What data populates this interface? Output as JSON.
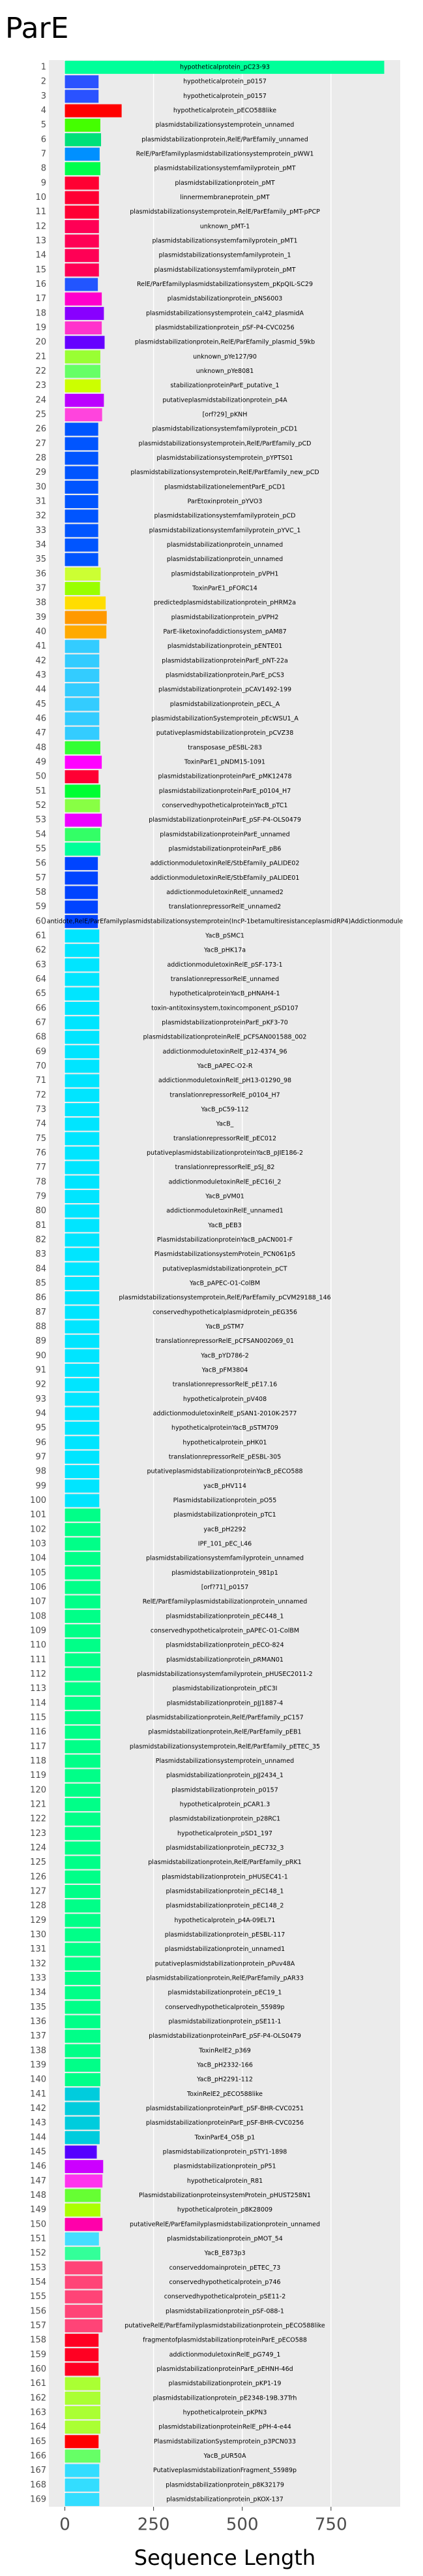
{
  "chart_data": {
    "type": "barh",
    "title": "ParE",
    "xlabel": "Sequence Length",
    "categories": [
      "1",
      "2",
      "3",
      "4",
      "5",
      "6",
      "7",
      "8",
      "9",
      "10",
      "11",
      "12",
      "13",
      "14",
      "15",
      "16",
      "17",
      "18",
      "19",
      "20",
      "21",
      "22",
      "23",
      "24",
      "25",
      "26",
      "27",
      "28",
      "29",
      "30",
      "31",
      "32",
      "33",
      "34",
      "35",
      "36",
      "37",
      "38",
      "39",
      "40",
      "41",
      "42",
      "43",
      "44",
      "45",
      "46",
      "47",
      "48",
      "49",
      "50",
      "51",
      "52",
      "53",
      "54",
      "55",
      "56",
      "57",
      "58",
      "59",
      "60",
      "61",
      "62",
      "63",
      "64",
      "65",
      "66",
      "67",
      "68",
      "69",
      "70",
      "71",
      "72",
      "73",
      "74",
      "75",
      "76",
      "77",
      "78",
      "79",
      "80",
      "81",
      "82",
      "83",
      "84",
      "85",
      "86",
      "87",
      "88",
      "89",
      "90",
      "91",
      "92",
      "93",
      "94",
      "95",
      "96",
      "97",
      "98",
      "99",
      "100",
      "101",
      "102",
      "103",
      "104",
      "105",
      "106",
      "107",
      "108",
      "109",
      "110",
      "111",
      "112",
      "113",
      "114",
      "115",
      "116",
      "117",
      "118",
      "119",
      "120",
      "121",
      "122",
      "123",
      "124",
      "125",
      "126",
      "127",
      "128",
      "129",
      "130",
      "131",
      "132",
      "133",
      "134",
      "135",
      "136",
      "137",
      "138",
      "139",
      "140",
      "141",
      "142",
      "143",
      "144",
      "145",
      "146",
      "147",
      "148",
      "149",
      "150",
      "151",
      "152",
      "153",
      "154",
      "155",
      "156",
      "157",
      "158",
      "159",
      "160",
      "161",
      "162",
      "163",
      "164",
      "165",
      "166",
      "167",
      "168",
      "169"
    ],
    "bar_labels": [
      "hypotheticalprotein_pC23-93",
      "hypotheticalprotein_p0157",
      "hypotheticalprotein_p0157",
      "hypotheticalprotein_pECO588like",
      "plasmidstabilizationsystemprotein_unnamed",
      "plasmidstabilizationprotein,RelE/ParEfamily_unnamed",
      "RelE/ParEfamilyplasmidstabilizationsystemprotein_pWW1",
      "plasmidstabilizationsystemfamilyprotein_pMT",
      "plasmidstabilizationprotein_pMT",
      "linnermembraneprotein_pMT",
      "plasmidstabilizationsystemprotein,RelE/ParEfamily_pMT-pPCP",
      "unknown_pMT-1",
      "plasmidstabilizationsystemfamilyprotein_pMT1",
      "plasmidstabilizationsystemfamilyprotein_1",
      "plasmidstabilizationsystemfamilyprotein_pMT",
      "RelE/ParEfamilyplasmidstabilizationsystem_pKpQIL-SC29",
      "plasmidstabilizationprotein_pNS6003",
      "plasmidstabilizationsystemprotein_cal42_plasmidA",
      "plasmidstabilizationprotein_pSF-P4-CVC0256",
      "plasmidstabilizationprotein,RelE/ParEfamily_plasmid_59kb",
      "unknown_pYe127/90",
      "unknown_pYe8081",
      "stabilizationproteinParE_putative_1",
      "putativeplasmidstabilizationprotein_p4A",
      "[orf?29]_pKNH",
      "plasmidstabilizationsystemfamilyprotein_pCD1",
      "plasmidstabilizationsystemprotein,RelE/ParEfamily_pCD",
      "plasmidstabilizationsystemprotein_pYPTS01",
      "plasmidstabilizationsystemprotein,RelE/ParEfamily_new_pCD",
      "plasmidstabilizationelementParE_pCD1",
      "ParEtoxinprotein_pYVO3",
      "plasmidstabilizationsystemfamilyprotein_pCD",
      "plasmidstabilizationsystemfamilyprotein_pYVC_1",
      "plasmidstabilizationprotein_unnamed",
      "plasmidstabilizationprotein_unnamed",
      "plasmidstabilizationprotein_pVPH1",
      "ToxinParE1_pFORC14",
      "predictedplasmidstabilizationprotein_pHRM2a",
      "plasmidstabilizationprotein_pVPH2",
      "ParE-liketoxinofaddictionsystem_pAM87",
      "plasmidstabilizationprotein_pENTE01",
      "plasmidstabilizationproteinParE_pNT-22a",
      "plasmidstabilizationprotein,ParE_pCS3",
      "plasmidstabilizationprotein_pCAV1492-199",
      "plasmidstabilizationprotein_pECL_A",
      "plasmidstabilizationSystemprotein_pEcWSU1_A",
      "putativeplasmidstabilizationprotein_pCVZ38",
      "transposase_pESBL-283",
      "ToxinParE1_pNDM15-1091",
      "plasmidstabilizationproteinParE_pMK12478",
      "plasmidstabilizationproteinParE_p0104_H7",
      "conservedhypotheticalproteinYacB_pTC1",
      "plasmidstabilizationproteinParE_pSF-P4-OLS0479",
      "plasmidstabilizationproteinParE_unnamed",
      "plasmidstabilizationproteinParE_pB6",
      "addictionmoduletoxinRelE/StbEfamily_pALIDE02",
      "addictionmoduletoxinRelE/StbEfamily_pALIDE01",
      "addictionmoduletoxinRelE_unnamed2",
      "translationrepressorRelE_unnamed2",
      "antidote,RelE/ParEfamilyplasmidstabilizationsystemprotein(IncP-1betamultiresistanceplasmidRP4)Addictionmodule",
      "YacB_pSMC1",
      "YacB_pHK17a",
      "addictionmoduletoxinRelE_pSF-173-1",
      "translationrepressorRelE_unnamed",
      "hypotheticalproteinYacB_pHNAH4-1",
      "toxin-antitoxinsystem,toxincomponent_pSD107",
      "plasmidstabilizationproteinParE_pKF3-70",
      "plasmidstabilizationproteinRelE_pCFSAN001588_002",
      "addictionmoduletoxinRelE_p12-4374_96",
      "YacB_pAPEC-O2-R",
      "addictionmoduletoxinRelE_pH13-01290_98",
      "translationrepressorRelE_p0104_H7",
      "YacB_pC59-112",
      "YacB_",
      "translationrepressorRelE_pEC012",
      "putativeplasmidstabilizationproteinYacB_pJIE186-2",
      "translationrepressorRelE_pSJ_82",
      "addictionmoduletoxinRelE_pEC16I_2",
      "YacB_pVM01",
      "addictionmoduletoxinRelE_unnamed1",
      "YacB_pEB3",
      "PlasmidstabilizationproteinYacB_pACN001-F",
      "PlasmidstabilizationsystemProtein_PCN061p5",
      "putativeplasmidstabilizationprotein_pCT",
      "YacB_pAPEC-O1-ColBM",
      "plasmidstabilizationsystemprotein,RelE/ParEfamily_pCVM29188_146",
      "conservedhypotheticalplasmidprotein_pEG356",
      "YacB_pSTM7",
      "translationrepressorRelE_pCFSAN002069_01",
      "YacB_pYD786-2",
      "YacB_pFM3804",
      "translationrepressorRelE_pE17.16",
      "hypotheticalprotein_pV408",
      "addictionmoduletoxinRelE_pSAN1-2010K-2577",
      "hypotheticalproteinYacB_pSTM709",
      "hypotheticalprotein_pHK01",
      "translationrepressorRelE_pESBL-305",
      "putativeplasmidstabilizationproteinYacB_pECO588",
      "yacB_pHV114",
      "Plasmidstabilizationprotein_pO55",
      "plasmidstabilizationprotein_pTC1",
      "yacB_pH2292",
      "IPF_101_pEC_L46",
      "plasmidstabilizationsystemfamilyprotein_unnamed",
      "plasmidstabilizationprotein_981p1",
      "[orf?71]_p0157",
      "RelE/ParEfamilyplasmidstabilizationprotein_unnamed",
      "plasmidstabilizationprotein_pEC448_1",
      "conservedhypotheticalprotein_pAPEC-O1-ColBM",
      "plasmidstabilizationprotein_pECO-824",
      "plasmidstabilizationprotein_pRMAN01",
      "plasmidstabilizationsystemfamilyprotein_pHUSEC2011-2",
      "plasmidstabilizationprotein_pEC3I",
      "plasmidstabilizationprotein_pJJ1887-4",
      "plasmidstabilizationprotein,RelE/ParEfamily_pC157",
      "plasmidstabilizationprotein,RelE/ParEfamily_pEB1",
      "plasmidstabilizationsystemprotein,RelE/ParEfamily_pETEC_35",
      "Plasmidstabilizationsystemprotein_unnamed",
      "plasmidstabilizationprotein_pJJ2434_1",
      "plasmidstabilizationprotein_p0157",
      "hypotheticalprotein_pCAR1.3",
      "plasmidstabilizationprotein_p28RC1",
      "hypotheticalprotein_pSD1_197",
      "plasmidstabilizationprotein_pEC732_3",
      "plasmidstabilizationprotein,RelE/ParEfamily_pRK1",
      "plasmidstabilizationprotein_pHUSEC41-1",
      "plasmidstabilizationprotein_pEC148_1",
      "plasmidstabilizationprotein_pEC148_2",
      "hypotheticalprotein_p4A-09EL71",
      "plasmidstabilizationprotein_pESBL-117",
      "plasmidstabilizationprotein_unnamed1",
      "putativeplasmidstabilizationprotein_pPuv48A",
      "plasmidstabilizationprotein,RelE/ParEfamily_pAR33",
      "plasmidstabilizationprotein_pEC19_1",
      "conservedhypotheticalprotein_55989p",
      "plasmidstabilizationprotein_pSE11-1",
      "plasmidstabilizationproteinParE_pSF-P4-OLS0479",
      "ToxinRelE2_p369",
      "YacB_pH2332-166",
      "YacB_pH2291-112",
      "ToxinRelE2_pECO588like",
      "plasmidstabilizationproteinParE_pSF-BHR-CVC0251",
      "plasmidstabilizationproteinParE_pSF-BHR-CVC0256",
      "ToxinParE4_O5B_p1",
      "plasmidstabilizationprotein_pSTY1-1898",
      "plasmidstabilizationprotein_pP51",
      "hypotheticalprotein_R81",
      "PlasmidstabilizationproteinsystemProtein_pHUST258N1",
      "hypotheticalprotein_p8K28009",
      "putativeRelE/ParEfamilyplasmidstabilizationprotein_unnamed",
      "plasmidstabilizationprotein_pMOT_54",
      "YacB_E873p3",
      "conserveddomainprotein_pETEC_73",
      "conservedhypotheticalprotein_p746",
      "conservedhypotheticalprotein_pSE11-2",
      "plasmidstabilizationprotein_pSF-088-1",
      "putativeRelE/ParEfamilyplasmidstabilizationprotein_pECO588like",
      "fragmentofplasmidstabilizationproteinParE_pECO588",
      "addictionmoduletoxinRelE_pG749_1",
      "plasmidstabilizationproteinParE_pEHNH-46d",
      "plasmidstabilizationprotein_pKP1-19",
      "plasmidstabilizationprotein_pE2348-19B.37Trh",
      "hypotheticalprotein_pKPN3",
      "plasmidstabilizationproteinRelE_pPH-4-e44",
      "PlasmidstabilizationSystemprotein_p3PCN033",
      "YacB_pUR50A",
      "PutativeplasmidstabilizationFragment_55989p",
      "plasmidstabilizationprotein_p8K32179",
      "plasmidstabilizationprotein_pKOX-137"
    ],
    "values": [
      900,
      95,
      95,
      160,
      100,
      102,
      98,
      100,
      96,
      96,
      96,
      96,
      96,
      96,
      96,
      93,
      104,
      110,
      104,
      112,
      100,
      100,
      101,
      110,
      105,
      94,
      94,
      94,
      94,
      94,
      94,
      94,
      94,
      94,
      94,
      101,
      99,
      115,
      118,
      117,
      97,
      97,
      97,
      97,
      97,
      97,
      97,
      100,
      104,
      95,
      100,
      99,
      104,
      100,
      100,
      93,
      93,
      93,
      93,
      93,
      97,
      97,
      97,
      97,
      97,
      97,
      97,
      97,
      97,
      97,
      97,
      97,
      97,
      97,
      97,
      97,
      97,
      97,
      97,
      97,
      97,
      97,
      97,
      97,
      97,
      97,
      97,
      97,
      97,
      97,
      97,
      97,
      97,
      97,
      97,
      97,
      97,
      97,
      97,
      97,
      100,
      100,
      100,
      100,
      100,
      100,
      100,
      100,
      100,
      100,
      100,
      100,
      100,
      100,
      100,
      100,
      100,
      100,
      100,
      100,
      100,
      100,
      100,
      100,
      100,
      100,
      100,
      100,
      100,
      100,
      100,
      100,
      100,
      100,
      100,
      100,
      100,
      100,
      100,
      100,
      98,
      98,
      98,
      98,
      90,
      108,
      106,
      101,
      100,
      106,
      96,
      100,
      106,
      106,
      106,
      106,
      106,
      95,
      95,
      95,
      100,
      100,
      100,
      100,
      95,
      100,
      97,
      97,
      97
    ],
    "colors": [
      "#00ff99",
      "#2a52ff",
      "#2a52ff",
      "#ff0000",
      "#44ff00",
      "#00e07a",
      "#0090ff",
      "#00ff4c",
      "#ff0033",
      "#ff0033",
      "#ff0033",
      "#ff0055",
      "#ff0055",
      "#ff0055",
      "#ff0055",
      "#2255ff",
      "#ff00cc",
      "#8800ff",
      "#ff33cc",
      "#6600ff",
      "#99ff33",
      "#66ff66",
      "#ccff00",
      "#bb00ff",
      "#ff44dd",
      "#0055ff",
      "#0055ff",
      "#0055ff",
      "#0055ff",
      "#0055ff",
      "#0055ff",
      "#0055ff",
      "#0055ff",
      "#0055ff",
      "#0055ff",
      "#ccff33",
      "#99ff00",
      "#ffdd00",
      "#ff9900",
      "#ffaa00",
      "#33ccff",
      "#33ccff",
      "#33ccff",
      "#33ccff",
      "#33ccff",
      "#33ccff",
      "#33ccff",
      "#33ff33",
      "#ff00ff",
      "#ff0033",
      "#00ff33",
      "#88ff44",
      "#ee00ff",
      "#33ff66",
      "#00ff99",
      "#0044ff",
      "#0044ff",
      "#0044ff",
      "#0044ff",
      "#0044ff",
      "#00e5ff",
      "#00e5ff",
      "#00e5ff",
      "#00e5ff",
      "#00e5ff",
      "#00e5ff",
      "#00e5ff",
      "#00e5ff",
      "#00e5ff",
      "#00e5ff",
      "#00e5ff",
      "#00e5ff",
      "#00e5ff",
      "#00e5ff",
      "#00e5ff",
      "#00e5ff",
      "#00e5ff",
      "#00e5ff",
      "#00e5ff",
      "#00e5ff",
      "#00e5ff",
      "#00e5ff",
      "#00e5ff",
      "#00e5ff",
      "#00e5ff",
      "#00e5ff",
      "#00e5ff",
      "#00e5ff",
      "#00e5ff",
      "#00e5ff",
      "#00e5ff",
      "#00e5ff",
      "#00e5ff",
      "#00e5ff",
      "#00e5ff",
      "#00e5ff",
      "#00e5ff",
      "#00e5ff",
      "#00e5ff",
      "#00e5ff",
      "#00ff88",
      "#00ff88",
      "#00ff88",
      "#00ff88",
      "#00ff88",
      "#00ff88",
      "#00ff88",
      "#00ff88",
      "#00ff88",
      "#00ff88",
      "#00ff88",
      "#00ff88",
      "#00ff88",
      "#00ff88",
      "#00ff88",
      "#00ff88",
      "#00ff88",
      "#00ff88",
      "#00ff88",
      "#00ff88",
      "#00ff88",
      "#00ff88",
      "#00ff88",
      "#00ff88",
      "#00ff88",
      "#00ff88",
      "#00ff88",
      "#00ff88",
      "#00ff88",
      "#00ff88",
      "#00ff88",
      "#00ff88",
      "#00ff88",
      "#00ff88",
      "#00ff88",
      "#00ff88",
      "#00ff88",
      "#00ff88",
      "#00ff88",
      "#00ff88",
      "#00ccdd",
      "#00ccdd",
      "#00ccdd",
      "#00ccdd",
      "#5500ff",
      "#cc00ff",
      "#ff33ee",
      "#66ff33",
      "#aaff00",
      "#ff00aa",
      "#44ddff",
      "#33ff99",
      "#ff4477",
      "#ff4477",
      "#ff4477",
      "#ff4477",
      "#ff4477",
      "#ff0022",
      "#ff0022",
      "#ff0022",
      "#aaff33",
      "#aaff33",
      "#aaff33",
      "#aaff33",
      "#ff0000",
      "#66ff66",
      "#33ddff",
      "#33ddff",
      "#33ddff"
    ],
    "xlim": [
      -45,
      945
    ],
    "xticks": [
      0,
      250,
      500,
      750
    ],
    "grid": true
  }
}
